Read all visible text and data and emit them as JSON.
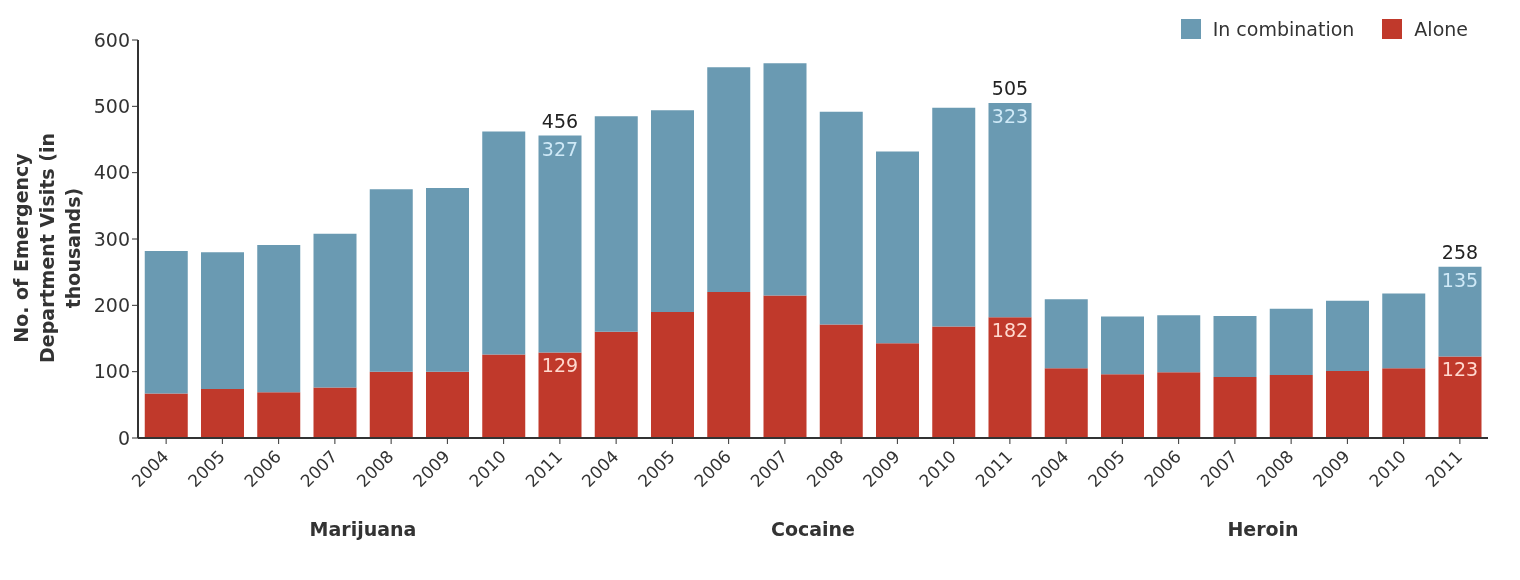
{
  "chart_data": {
    "type": "bar",
    "stacked": true,
    "ylabel": "No. of Emergency Department Visits (in thousands)",
    "categories": [
      "2004",
      "2005",
      "2006",
      "2007",
      "2008",
      "2009",
      "2010",
      "2011",
      "2004",
      "2005",
      "2006",
      "2007",
      "2008",
      "2009",
      "2010",
      "2011",
      "2004",
      "2005",
      "2006",
      "2007",
      "2008",
      "2009",
      "2010",
      "2011"
    ],
    "series": [
      {
        "name": "Alone",
        "color": "#c0392b",
        "values": [
          67,
          74,
          69,
          76,
          100,
          100,
          126,
          129,
          160,
          190,
          220,
          215,
          171,
          143,
          168,
          182,
          105,
          96,
          99,
          92,
          95,
          101,
          105,
          123
        ],
        "value_labels": [
          null,
          null,
          null,
          null,
          null,
          null,
          null,
          "129",
          null,
          null,
          null,
          null,
          null,
          null,
          null,
          "182",
          null,
          null,
          null,
          null,
          null,
          null,
          null,
          "123"
        ]
      },
      {
        "name": "In combination",
        "color": "#6a9ab2",
        "values": [
          215,
          206,
          222,
          232,
          275,
          277,
          336,
          327,
          325,
          304,
          339,
          350,
          321,
          289,
          330,
          323,
          104,
          87,
          86,
          92,
          100,
          106,
          113,
          135
        ],
        "value_labels": [
          null,
          null,
          null,
          null,
          null,
          null,
          null,
          "327",
          null,
          null,
          null,
          null,
          null,
          null,
          null,
          "323",
          null,
          null,
          null,
          null,
          null,
          null,
          null,
          "135"
        ]
      }
    ],
    "totals": [
      null,
      null,
      null,
      null,
      null,
      null,
      null,
      "456",
      null,
      null,
      null,
      null,
      null,
      null,
      null,
      "505",
      null,
      null,
      null,
      null,
      null,
      null,
      null,
      "258"
    ],
    "annotations": [
      "Marijuana",
      "Cocaine",
      "Heroin"
    ],
    "ylim": [
      0,
      600
    ],
    "yticks": [
      0,
      100,
      200,
      300,
      400,
      500,
      600
    ],
    "grid": false,
    "legend": "top right"
  }
}
